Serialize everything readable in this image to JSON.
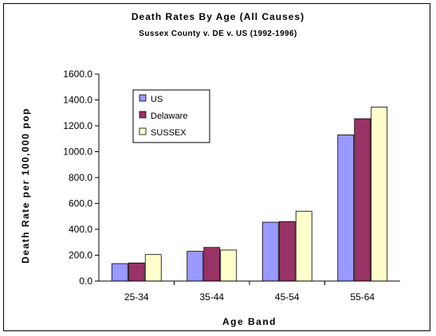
{
  "chart_data": {
    "type": "bar",
    "title": "Death Rates By Age (All Causes)",
    "subtitle": "Sussex County v. DE v. US (1992-1996)",
    "xlabel": "Age Band",
    "ylabel": "Death Rate per 100,000 pop",
    "ylim": [
      0,
      1600
    ],
    "yticks": [
      "0.0",
      "200.0",
      "400.0",
      "600.0",
      "800.0",
      "1000.0",
      "1200.0",
      "1400.0",
      "1600.0"
    ],
    "categories": [
      "25-34",
      "35-44",
      "45-54",
      "55-64"
    ],
    "series": [
      {
        "name": "US",
        "color": "#9999ff",
        "values": [
          135,
          230,
          455,
          1130
        ]
      },
      {
        "name": "Delaware",
        "color": "#993366",
        "values": [
          140,
          260,
          460,
          1255
        ]
      },
      {
        "name": "SUSSEX",
        "color": "#ffffcc",
        "values": [
          205,
          240,
          540,
          1345
        ]
      }
    ],
    "legend_position": "top-left",
    "grid": false
  }
}
